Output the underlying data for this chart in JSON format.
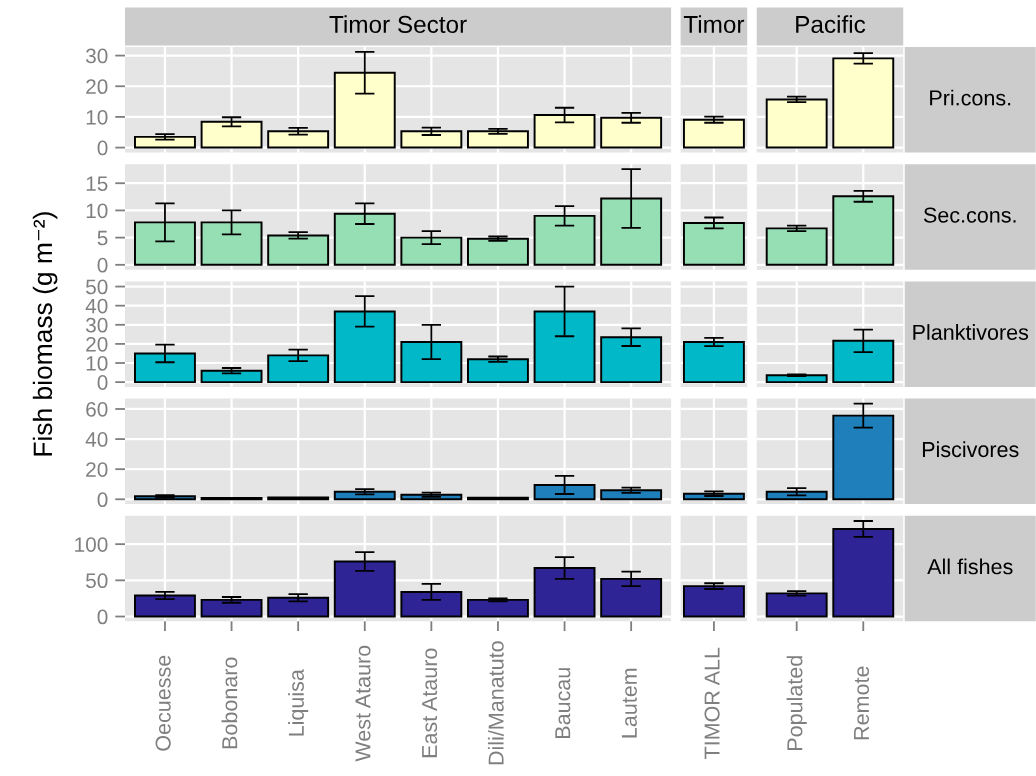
{
  "chart_data": [
    {
      "type": "bar",
      "title": "Timor Sector",
      "categories": [
        null,
        null,
        null,
        null,
        null,
        null,
        null,
        null
      ],
      "values": [
        3.5,
        8.4,
        5.3,
        24.4,
        5.3,
        5.3,
        10.6,
        9.7
      ],
      "errors": [
        0.9,
        1.5,
        1.1,
        6.8,
        1.2,
        0.8,
        2.4,
        1.6
      ],
      "color": "#ffffcc",
      "ylim": [
        -1.6,
        32.8
      ],
      "yticks": [
        0,
        10,
        20,
        30
      ],
      "grid": true,
      "tick_labels": "y"
    },
    {
      "type": "bar",
      "title": "Timor",
      "categories": [
        null
      ],
      "values": [
        9.1
      ],
      "errors": [
        1.0
      ],
      "color": "#ffffcc",
      "ylim": [
        -1.6,
        32.8
      ],
      "yticks": [
        0,
        10,
        20,
        30
      ],
      "grid": true,
      "tick_labels": false
    },
    {
      "type": "bar",
      "title": "Pacific",
      "categories": [
        null,
        null
      ],
      "values": [
        15.7,
        29.1
      ],
      "errors": [
        0.9,
        1.7
      ],
      "color": "#ffffcc",
      "ylim": [
        -1.6,
        32.8
      ],
      "yticks": [
        0,
        10,
        20,
        30
      ],
      "grid": true,
      "tick_labels": false,
      "annotations": [
        "Pri.cons."
      ]
    },
    {
      "type": "bar",
      "categories": [
        null,
        null,
        null,
        null,
        null,
        null,
        null,
        null
      ],
      "values": [
        7.8,
        7.8,
        5.4,
        9.4,
        5.0,
        4.8,
        9.0,
        12.2
      ],
      "errors": [
        3.5,
        2.2,
        0.6,
        1.9,
        1.2,
        0.4,
        1.8,
        5.4
      ],
      "color": "#96deb4",
      "ylim": [
        -0.9,
        18.5
      ],
      "yticks": [
        0,
        5,
        10,
        15
      ],
      "grid": true,
      "tick_labels": "y"
    },
    {
      "type": "bar",
      "categories": [
        null
      ],
      "values": [
        7.7
      ],
      "errors": [
        1.0
      ],
      "color": "#96deb4",
      "ylim": [
        -0.9,
        18.5
      ],
      "yticks": [
        0,
        5,
        10,
        15
      ],
      "grid": true,
      "tick_labels": false
    },
    {
      "type": "bar",
      "categories": [
        null,
        null
      ],
      "values": [
        6.7,
        12.6
      ],
      "errors": [
        0.5,
        1.0
      ],
      "color": "#96deb4",
      "ylim": [
        -0.9,
        18.5
      ],
      "yticks": [
        0,
        5,
        10,
        15
      ],
      "grid": true,
      "tick_labels": false,
      "annotations": [
        "Sec.cons."
      ]
    },
    {
      "type": "bar",
      "ylabel": "Fish biomass (g m⁻²)",
      "categories": [
        null,
        null,
        null,
        null,
        null,
        null,
        null,
        null
      ],
      "values": [
        15,
        6,
        14,
        37,
        21,
        12,
        37,
        23.5
      ],
      "errors": [
        4.6,
        1.4,
        3,
        8,
        9,
        1.4,
        13,
        4.6
      ],
      "color": "#00b8c8",
      "ylim": [
        -2.5,
        52.7
      ],
      "yticks": [
        0,
        10,
        20,
        30,
        40,
        50
      ],
      "grid": true,
      "tick_labels": "y"
    },
    {
      "type": "bar",
      "categories": [
        null
      ],
      "values": [
        21
      ],
      "errors": [
        2.2
      ],
      "color": "#00b8c8",
      "ylim": [
        -2.5,
        52.7
      ],
      "yticks": [
        0,
        10,
        20,
        30,
        40,
        50
      ],
      "grid": true,
      "tick_labels": false
    },
    {
      "type": "bar",
      "categories": [
        null,
        null
      ],
      "values": [
        3.6,
        21.6
      ],
      "errors": [
        0.5,
        5.9
      ],
      "color": "#00b8c8",
      "ylim": [
        -2.5,
        52.7
      ],
      "yticks": [
        0,
        10,
        20,
        30,
        40,
        50
      ],
      "grid": true,
      "tick_labels": false,
      "annotations": [
        "Planktivores"
      ]
    },
    {
      "type": "bar",
      "categories": [
        null,
        null,
        null,
        null,
        null,
        null,
        null,
        null
      ],
      "values": [
        2,
        0.8,
        1.2,
        5,
        3,
        1,
        9.5,
        6
      ],
      "errors": [
        0.8,
        null,
        null,
        1.7,
        1.4,
        null,
        6,
        1.7
      ],
      "color": "#1e7fba",
      "ylim": [
        -3.2,
        66.9
      ],
      "yticks": [
        0,
        20,
        40,
        60
      ],
      "grid": true,
      "tick_labels": "y"
    },
    {
      "type": "bar",
      "categories": [
        null
      ],
      "values": [
        3.7
      ],
      "errors": [
        1.5
      ],
      "color": "#1e7fba",
      "ylim": [
        -3.2,
        66.9
      ],
      "yticks": [
        0,
        20,
        40,
        60
      ],
      "grid": true,
      "tick_labels": false
    },
    {
      "type": "bar",
      "categories": [
        null,
        null
      ],
      "values": [
        5,
        55.6
      ],
      "errors": [
        2.4,
        8
      ],
      "color": "#1e7fba",
      "ylim": [
        -3.2,
        66.9
      ],
      "yticks": [
        0,
        20,
        40,
        60
      ],
      "grid": true,
      "tick_labels": false,
      "annotations": [
        "Piscivores"
      ]
    },
    {
      "type": "bar",
      "categories": [
        "Oecuesse",
        "Bobonaro",
        "Liquisa",
        "West Atauro",
        "East Atauro",
        "Dili/Manatuto",
        "Baucau",
        "Lautem"
      ],
      "values": [
        29,
        23,
        26,
        76,
        34,
        23,
        67,
        52
      ],
      "errors": [
        5,
        4,
        5,
        13,
        11,
        2,
        15,
        10
      ],
      "color": "#2e2496",
      "ylim": [
        -6.6,
        139.2
      ],
      "yticks": [
        0,
        50,
        100
      ],
      "grid": true
    },
    {
      "type": "bar",
      "categories": [
        "TIMOR ALL"
      ],
      "values": [
        42
      ],
      "errors": [
        4
      ],
      "color": "#2e2496",
      "ylim": [
        -6.6,
        139.2
      ],
      "yticks": [
        0,
        50,
        100
      ],
      "grid": true,
      "tick_labels": "x"
    },
    {
      "type": "bar",
      "categories": [
        "Populated",
        "Remote"
      ],
      "values": [
        32,
        121
      ],
      "errors": [
        3,
        11
      ],
      "color": "#2e2496",
      "ylim": [
        -6.6,
        139.2
      ],
      "yticks": [
        0,
        50,
        100
      ],
      "grid": true,
      "tick_labels": "x",
      "annotations": [
        "All fishes"
      ]
    }
  ]
}
